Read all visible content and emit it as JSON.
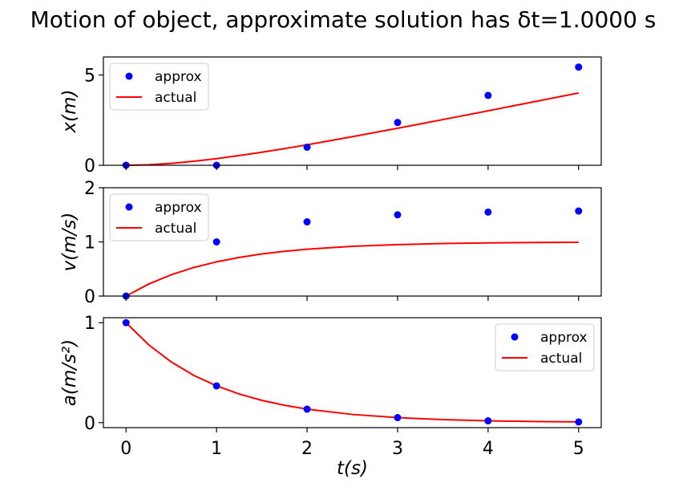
{
  "title": "Motion of object, approximate solution has δt=1.0000 s",
  "chart_data": [
    {
      "type": "line",
      "ylabel": "x(m)",
      "xlabel": "",
      "xlim": [
        -0.25,
        5.25
      ],
      "ylim": [
        0,
        6.0
      ],
      "yticks": [
        {
          "v": 0,
          "label": "0"
        },
        {
          "v": 5,
          "label": "5"
        }
      ],
      "legend_position": "top-left",
      "grid": false,
      "series": [
        {
          "name": "approx",
          "style": "points",
          "color": "#0000ff",
          "x": [
            0,
            1,
            2,
            3,
            4,
            5
          ],
          "y": [
            0,
            0,
            1.0,
            2.37,
            3.87,
            5.44
          ]
        },
        {
          "name": "actual",
          "style": "line",
          "color": "#ff0000",
          "x": [
            0,
            0.25,
            0.5,
            0.75,
            1,
            1.25,
            1.5,
            1.75,
            2,
            2.5,
            3,
            3.5,
            4,
            4.5,
            5
          ],
          "y": [
            0,
            0.029,
            0.107,
            0.222,
            0.368,
            0.537,
            0.723,
            0.924,
            1.135,
            1.582,
            2.05,
            2.53,
            3.018,
            3.511,
            4.007
          ]
        }
      ]
    },
    {
      "type": "line",
      "ylabel": "v(m/s)",
      "xlabel": "",
      "xlim": [
        -0.25,
        5.25
      ],
      "ylim": [
        0,
        2
      ],
      "yticks": [
        {
          "v": 0,
          "label": "0"
        },
        {
          "v": 1,
          "label": "1"
        },
        {
          "v": 2,
          "label": "2"
        }
      ],
      "legend_position": "top-left",
      "grid": false,
      "series": [
        {
          "name": "approx",
          "style": "points",
          "color": "#0000ff",
          "x": [
            0,
            1,
            2,
            3,
            4,
            5
          ],
          "y": [
            0,
            1.0,
            1.37,
            1.5,
            1.55,
            1.57
          ]
        },
        {
          "name": "actual",
          "style": "line",
          "color": "#ff0000",
          "x": [
            0,
            0.25,
            0.5,
            0.75,
            1,
            1.25,
            1.5,
            1.75,
            2,
            2.5,
            3,
            3.5,
            4,
            4.5,
            5
          ],
          "y": [
            0,
            0.221,
            0.393,
            0.528,
            0.632,
            0.713,
            0.777,
            0.826,
            0.865,
            0.918,
            0.95,
            0.97,
            0.982,
            0.989,
            0.993
          ]
        }
      ]
    },
    {
      "type": "line",
      "ylabel": "a(m/s²)",
      "xlabel": "t(s)",
      "xlim": [
        -0.25,
        5.25
      ],
      "ylim": [
        -0.05,
        1.05
      ],
      "yticks": [
        {
          "v": 0,
          "label": "0"
        },
        {
          "v": 1,
          "label": "1"
        }
      ],
      "xticks": [
        {
          "v": 0,
          "label": "0"
        },
        {
          "v": 1,
          "label": "1"
        },
        {
          "v": 2,
          "label": "2"
        },
        {
          "v": 3,
          "label": "3"
        },
        {
          "v": 4,
          "label": "4"
        },
        {
          "v": 5,
          "label": "5"
        }
      ],
      "legend_position": "top-right",
      "grid": false,
      "series": [
        {
          "name": "approx",
          "style": "points",
          "color": "#0000ff",
          "x": [
            0,
            1,
            2,
            3,
            4,
            5
          ],
          "y": [
            1.0,
            0.368,
            0.135,
            0.05,
            0.018,
            0.007
          ]
        },
        {
          "name": "actual",
          "style": "line",
          "color": "#ff0000",
          "x": [
            0,
            0.25,
            0.5,
            0.75,
            1,
            1.25,
            1.5,
            1.75,
            2,
            2.5,
            3,
            3.5,
            4,
            4.5,
            5
          ],
          "y": [
            1.0,
            0.779,
            0.607,
            0.472,
            0.368,
            0.287,
            0.223,
            0.174,
            0.135,
            0.082,
            0.05,
            0.03,
            0.018,
            0.011,
            0.007
          ]
        }
      ]
    }
  ]
}
